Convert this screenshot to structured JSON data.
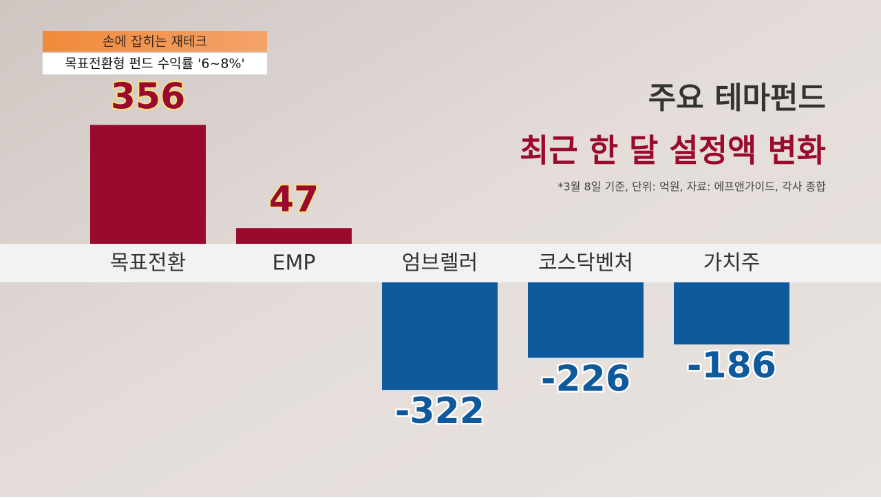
{
  "header": {
    "tag": "손에 잡히는 재테크",
    "headline": "목표전환형 펀드 수익률 '6~8%'"
  },
  "chart_data": {
    "type": "bar",
    "title": "주요 테마펀드",
    "subtitle": "최근 한 달 설정액 변화",
    "note": "*3월 8일 기준, 단위: 억원, 자료: 에프앤가이드, 각사 종합",
    "categories": [
      "목표전환",
      "EMP",
      "엄브렐러",
      "코스닥벤처",
      "가치주"
    ],
    "values": [
      356,
      47,
      -322,
      -226,
      -186
    ],
    "positive_color": "#9a0a2e",
    "negative_color": "#0e5a9c"
  }
}
